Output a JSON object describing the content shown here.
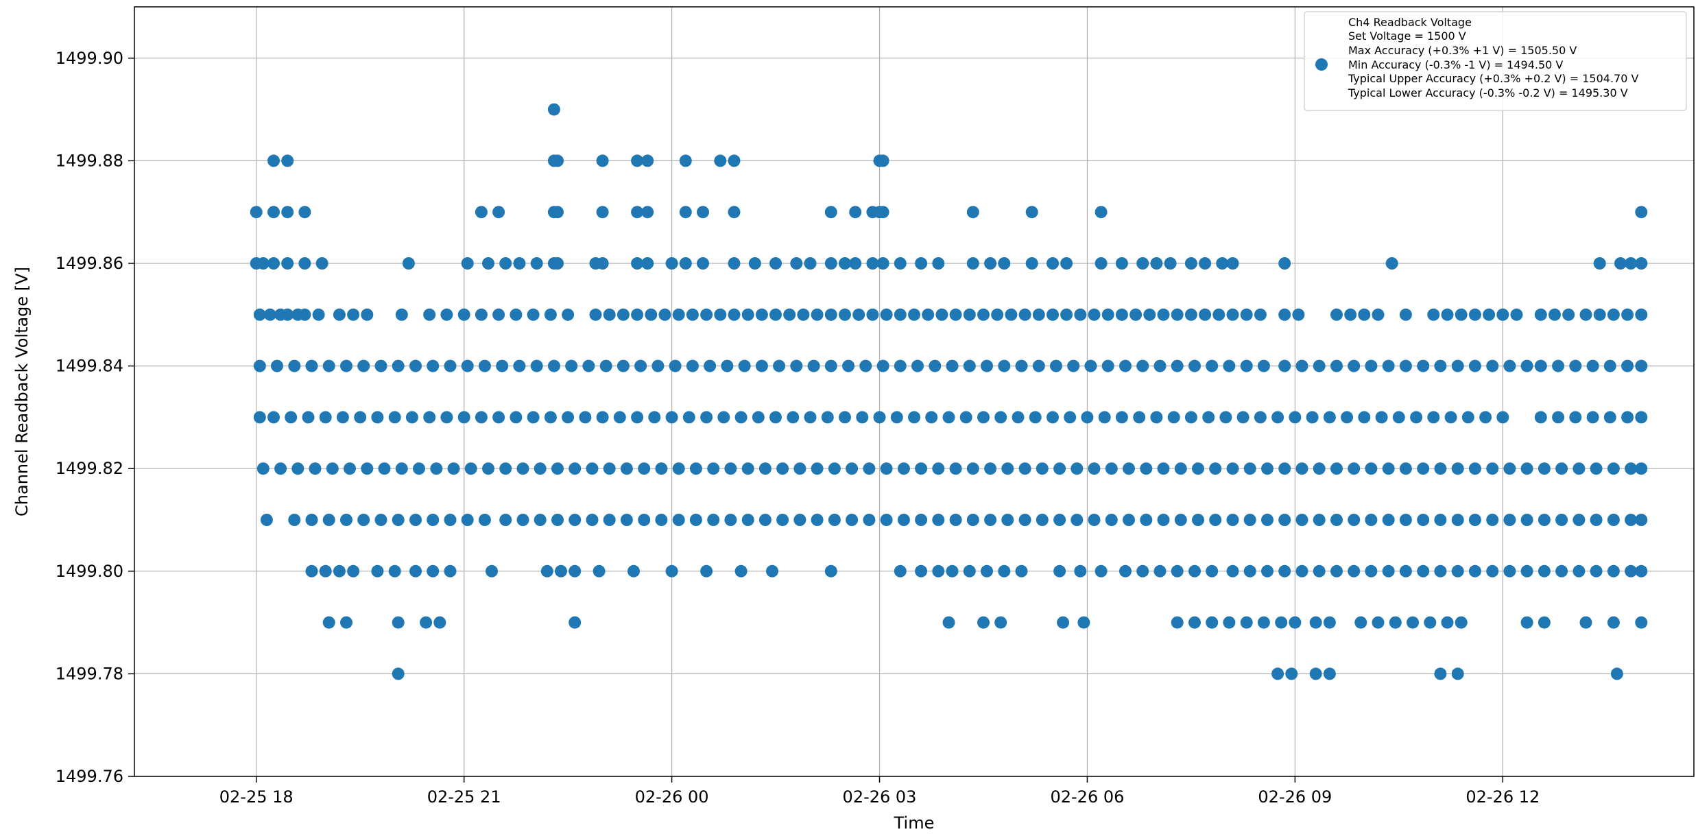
{
  "chart_data": {
    "type": "scatter",
    "xlabel": "Time",
    "ylabel": "Channel Readback Voltage [V]",
    "ylim": [
      1499.76,
      1499.91
    ],
    "xlim_hours": [
      -1.76,
      20.76
    ],
    "grid": true,
    "legend_position": "top-right",
    "legend": [
      "Ch4 Readback Voltage",
      "Set Voltage = 1500 V",
      "Max Accuracy (+0.3% +1 V) = 1505.50 V",
      "Min Accuracy (-0.3% -1 V) = 1494.50 V",
      "Typical Upper Accuracy (+0.3% +0.2 V) = 1504.70 V",
      "Typical Lower Accuracy (-0.3% -0.2 V) = 1495.30 V"
    ],
    "x_ticks": [
      {
        "label": "02-25 18",
        "hours": 0
      },
      {
        "label": "02-25 21",
        "hours": 3
      },
      {
        "label": "02-26 00",
        "hours": 6
      },
      {
        "label": "02-26 03",
        "hours": 9
      },
      {
        "label": "02-26 06",
        "hours": 12
      },
      {
        "label": "02-26 09",
        "hours": 15
      },
      {
        "label": "02-26 12",
        "hours": 18
      },
      {
        "label": "02-26 15",
        "hours": 21
      }
    ],
    "y_ticks": [
      "1499.76",
      "1499.78",
      "1499.80",
      "1499.82",
      "1499.84",
      "1499.86",
      "1499.88",
      "1499.90"
    ],
    "series": [
      {
        "name": "Ch4 Readback Voltage",
        "color": "#1f77b4",
        "levels": [
          {
            "y": 1499.89,
            "x": [
              4.3
            ]
          },
          {
            "y": 1499.88,
            "x": [
              0.25,
              0.45,
              4.3,
              4.35,
              5.0,
              5.5,
              5.65,
              6.2,
              6.7,
              6.9,
              9.0,
              9.05
            ]
          },
          {
            "y": 1499.87,
            "x": [
              0.0,
              0.25,
              0.45,
              0.7,
              3.25,
              3.5,
              4.3,
              4.35,
              5.0,
              5.5,
              5.65,
              6.2,
              6.45,
              6.9,
              8.3,
              8.65,
              8.9,
              9.0,
              9.05,
              10.35,
              11.2,
              12.2,
              20.0
            ]
          },
          {
            "y": 1499.86,
            "x": [
              0.0,
              0.1,
              0.25,
              0.45,
              0.7,
              0.95,
              2.2,
              3.05,
              3.35,
              3.6,
              3.8,
              4.05,
              4.3,
              4.35,
              4.9,
              5.0,
              5.5,
              5.65,
              6.0,
              6.2,
              6.45,
              6.9,
              7.2,
              7.5,
              7.8,
              8.0,
              8.3,
              8.5,
              8.65,
              8.9,
              9.05,
              9.3,
              9.6,
              9.85,
              10.35,
              10.6,
              10.8,
              11.2,
              11.5,
              11.7,
              12.2,
              12.5,
              12.8,
              13.0,
              13.2,
              13.5,
              13.7,
              13.95,
              14.1,
              14.85,
              16.4,
              19.4,
              19.7,
              19.85,
              20.0
            ]
          },
          {
            "y": 1499.85,
            "x": [
              0.05,
              0.2,
              0.35,
              0.45,
              0.6,
              0.7,
              0.9,
              1.2,
              1.4,
              1.6,
              2.1,
              2.5,
              2.75,
              3.0,
              3.25,
              3.5,
              3.75,
              4.0,
              4.25,
              4.5,
              4.9,
              5.1,
              5.3,
              5.5,
              5.7,
              5.9,
              6.1,
              6.3,
              6.5,
              6.7,
              6.9,
              7.1,
              7.3,
              7.5,
              7.7,
              7.9,
              8.1,
              8.3,
              8.5,
              8.7,
              8.9,
              9.1,
              9.3,
              9.5,
              9.7,
              9.9,
              10.1,
              10.3,
              10.5,
              10.7,
              10.9,
              11.1,
              11.3,
              11.5,
              11.7,
              11.9,
              12.1,
              12.3,
              12.5,
              12.7,
              12.9,
              13.1,
              13.3,
              13.5,
              13.7,
              13.9,
              14.1,
              14.3,
              14.5,
              14.85,
              15.05,
              15.6,
              15.8,
              16.0,
              16.2,
              16.6,
              17.0,
              17.2,
              17.4,
              17.6,
              17.8,
              18.0,
              18.2,
              18.55,
              18.75,
              18.95,
              19.2,
              19.4,
              19.6,
              19.8,
              20.0
            ]
          },
          {
            "y": 1499.84,
            "x": [
              0.05,
              0.3,
              0.55,
              0.8,
              1.05,
              1.3,
              1.55,
              1.8,
              2.05,
              2.3,
              2.55,
              2.8,
              3.05,
              3.3,
              3.55,
              3.8,
              4.05,
              4.3,
              4.55,
              4.8,
              5.05,
              5.3,
              5.55,
              5.8,
              6.05,
              6.3,
              6.55,
              6.8,
              7.05,
              7.3,
              7.55,
              7.8,
              8.05,
              8.3,
              8.55,
              8.8,
              9.05,
              9.3,
              9.55,
              9.8,
              10.05,
              10.3,
              10.55,
              10.8,
              11.05,
              11.3,
              11.55,
              11.8,
              12.05,
              12.3,
              12.55,
              12.8,
              13.05,
              13.3,
              13.55,
              13.8,
              14.05,
              14.3,
              14.55,
              14.85,
              15.1,
              15.35,
              15.6,
              15.85,
              16.1,
              16.35,
              16.6,
              16.85,
              17.1,
              17.35,
              17.6,
              17.85,
              18.1,
              18.35,
              18.55,
              18.8,
              19.05,
              19.3,
              19.55,
              19.8,
              20.0
            ]
          },
          {
            "y": 1499.83,
            "x": [
              0.05,
              0.25,
              0.5,
              0.75,
              1.0,
              1.25,
              1.5,
              1.75,
              2.0,
              2.25,
              2.5,
              2.75,
              3.0,
              3.25,
              3.5,
              3.75,
              4.0,
              4.25,
              4.5,
              4.75,
              5.0,
              5.25,
              5.5,
              5.75,
              6.0,
              6.25,
              6.5,
              6.75,
              7.0,
              7.25,
              7.5,
              7.75,
              8.0,
              8.25,
              8.5,
              8.75,
              9.0,
              9.25,
              9.5,
              9.75,
              10.0,
              10.25,
              10.5,
              10.75,
              11.0,
              11.25,
              11.5,
              11.75,
              12.0,
              12.25,
              12.5,
              12.75,
              13.0,
              13.25,
              13.5,
              13.75,
              14.0,
              14.25,
              14.5,
              14.75,
              15.0,
              15.25,
              15.5,
              15.75,
              16.0,
              16.25,
              16.5,
              16.75,
              17.0,
              17.25,
              17.5,
              17.75,
              18.0,
              18.55,
              18.8,
              19.05,
              19.3,
              19.55,
              19.8,
              20.0
            ]
          },
          {
            "y": 1499.82,
            "x": [
              0.1,
              0.35,
              0.6,
              0.85,
              1.1,
              1.35,
              1.6,
              1.85,
              2.1,
              2.35,
              2.6,
              2.85,
              3.1,
              3.35,
              3.6,
              3.85,
              4.1,
              4.35,
              4.6,
              4.85,
              5.1,
              5.35,
              5.6,
              5.85,
              6.1,
              6.35,
              6.6,
              6.85,
              7.1,
              7.35,
              7.6,
              7.85,
              8.1,
              8.35,
              8.6,
              8.85,
              9.1,
              9.35,
              9.6,
              9.85,
              10.1,
              10.35,
              10.6,
              10.85,
              11.1,
              11.35,
              11.6,
              11.85,
              12.1,
              12.35,
              12.6,
              12.85,
              13.1,
              13.35,
              13.6,
              13.85,
              14.1,
              14.35,
              14.6,
              14.85,
              15.1,
              15.35,
              15.6,
              15.85,
              16.1,
              16.35,
              16.6,
              16.85,
              17.1,
              17.35,
              17.6,
              17.85,
              18.1,
              18.35,
              18.6,
              18.85,
              19.1,
              19.35,
              19.6,
              19.85,
              20.0
            ]
          },
          {
            "y": 1499.81,
            "x": [
              0.15,
              0.55,
              0.8,
              1.05,
              1.3,
              1.55,
              1.8,
              2.05,
              2.3,
              2.55,
              2.8,
              3.05,
              3.3,
              3.6,
              3.85,
              4.1,
              4.35,
              4.6,
              4.85,
              5.1,
              5.35,
              5.6,
              5.85,
              6.1,
              6.35,
              6.6,
              6.85,
              7.1,
              7.35,
              7.6,
              7.85,
              8.1,
              8.35,
              8.6,
              8.85,
              9.1,
              9.35,
              9.6,
              9.85,
              10.1,
              10.35,
              10.6,
              10.85,
              11.1,
              11.35,
              11.6,
              11.85,
              12.1,
              12.35,
              12.6,
              12.85,
              13.1,
              13.35,
              13.6,
              13.85,
              14.1,
              14.35,
              14.6,
              14.85,
              15.1,
              15.35,
              15.6,
              15.85,
              16.1,
              16.35,
              16.6,
              16.85,
              17.1,
              17.35,
              17.6,
              17.85,
              18.1,
              18.35,
              18.6,
              18.85,
              19.1,
              19.35,
              19.6,
              19.85,
              20.0
            ]
          },
          {
            "y": 1499.8,
            "x": [
              0.8,
              1.0,
              1.2,
              1.4,
              1.75,
              2.0,
              2.3,
              2.55,
              2.8,
              3.4,
              4.2,
              4.4,
              4.6,
              4.95,
              5.45,
              6.0,
              6.5,
              7.0,
              7.45,
              8.3,
              9.3,
              9.6,
              9.85,
              10.05,
              10.3,
              10.55,
              10.8,
              11.05,
              11.6,
              11.9,
              12.2,
              12.55,
              12.8,
              13.05,
              13.3,
              13.55,
              13.8,
              14.1,
              14.35,
              14.6,
              14.85,
              15.1,
              15.35,
              15.6,
              15.85,
              16.1,
              16.35,
              16.6,
              16.85,
              17.1,
              17.35,
              17.6,
              17.85,
              18.1,
              18.35,
              18.6,
              18.85,
              19.1,
              19.35,
              19.6,
              19.85,
              20.0
            ]
          },
          {
            "y": 1499.79,
            "x": [
              1.05,
              1.3,
              2.05,
              2.45,
              2.65,
              4.6,
              10.0,
              10.5,
              10.75,
              11.65,
              11.95,
              13.3,
              13.55,
              13.8,
              14.05,
              14.3,
              14.55,
              14.8,
              15.0,
              15.3,
              15.5,
              15.95,
              16.2,
              16.45,
              16.7,
              16.95,
              17.2,
              17.4,
              18.35,
              18.6,
              19.2,
              19.6,
              20.0
            ]
          },
          {
            "y": 1499.78,
            "x": [
              2.05,
              14.75,
              14.95,
              15.3,
              15.5,
              17.1,
              17.35,
              19.65
            ]
          }
        ]
      }
    ]
  }
}
